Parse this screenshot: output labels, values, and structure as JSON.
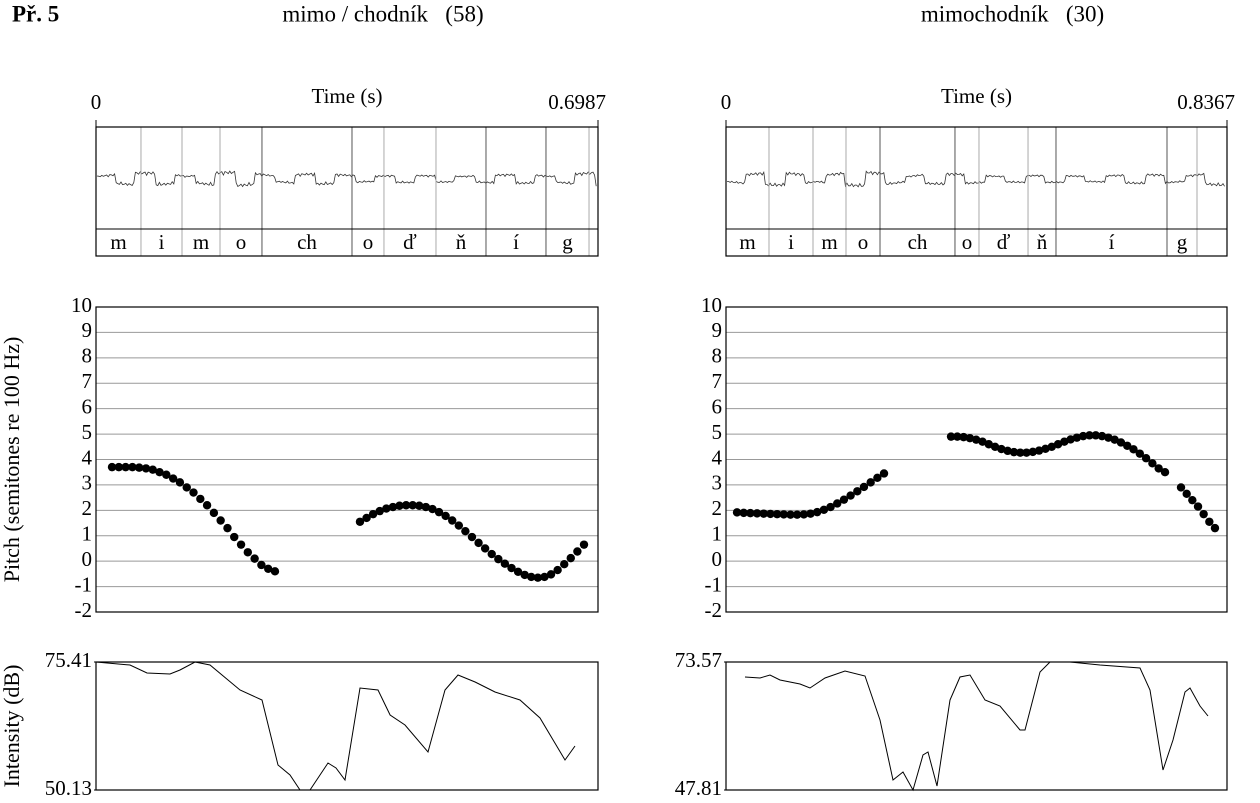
{
  "figure_label": "Př. 5",
  "chart_data": [
    {
      "type": "tier",
      "title": "mimo / chodník   (58)",
      "xlabel": "Time (s)",
      "xlim": [
        0,
        0.6987
      ],
      "xticks": [
        0,
        0.6987
      ],
      "labels": [
        "m",
        "i",
        "m",
        "o",
        "ch",
        "o",
        "ď",
        "ň",
        "í",
        "g"
      ],
      "boundaries": [
        0,
        0.0626,
        0.1197,
        0.1726,
        0.231,
        0.3563,
        0.4008,
        0.4732,
        0.5428,
        0.6263,
        0.6862
      ]
    },
    {
      "type": "scatter",
      "ylabel": "Pitch (semitones re 100 Hz)",
      "xlim": [
        0,
        0.6987
      ],
      "ylim": [
        -2,
        10
      ],
      "yticks": [
        -2,
        -1,
        0,
        1,
        2,
        3,
        4,
        5,
        6,
        7,
        8,
        9,
        10
      ],
      "grid": true,
      "color": "#000000",
      "x": [
        0.0223,
        0.0318,
        0.0412,
        0.0507,
        0.0601,
        0.0696,
        0.079,
        0.0885,
        0.0979,
        0.1074,
        0.1168,
        0.1263,
        0.1357,
        0.1452,
        0.1546,
        0.1641,
        0.1735,
        0.183,
        0.1924,
        0.2019,
        0.2113,
        0.2208,
        0.2302,
        0.2397,
        0.2491,
        0.3674,
        0.3766,
        0.3857,
        0.3949,
        0.4041,
        0.4133,
        0.4224,
        0.4316,
        0.4408,
        0.4499,
        0.4591,
        0.4683,
        0.4774,
        0.4866,
        0.4958,
        0.505,
        0.5141,
        0.5233,
        0.5325,
        0.5416,
        0.5508,
        0.56,
        0.5691,
        0.5783,
        0.5875,
        0.5967,
        0.6058,
        0.615,
        0.6242,
        0.6333,
        0.6425,
        0.6517,
        0.6608,
        0.67,
        0.6792
      ],
      "values": [
        3.7,
        3.7,
        3.7,
        3.7,
        3.68,
        3.65,
        3.6,
        3.5,
        3.4,
        3.25,
        3.1,
        2.9,
        2.7,
        2.45,
        2.2,
        1.9,
        1.6,
        1.3,
        0.95,
        0.65,
        0.35,
        0.1,
        -0.15,
        -0.3,
        -0.4,
        1.55,
        1.7,
        1.85,
        1.97,
        2.07,
        2.13,
        2.18,
        2.2,
        2.2,
        2.18,
        2.13,
        2.05,
        1.93,
        1.78,
        1.6,
        1.4,
        1.18,
        0.95,
        0.72,
        0.5,
        0.28,
        0.08,
        -0.1,
        -0.27,
        -0.42,
        -0.54,
        -0.62,
        -0.65,
        -0.62,
        -0.52,
        -0.35,
        -0.12,
        0.12,
        0.38,
        0.65
      ]
    },
    {
      "type": "line",
      "ylabel": "Intensity (dB)",
      "xlim": [
        0,
        0.6987
      ],
      "ylim": [
        50.13,
        75.41
      ],
      "yticks": [
        50.13,
        75.41
      ],
      "color": "#000000",
      "x": [
        0,
        0.0473,
        0.071,
        0.103,
        0.1169,
        0.1378,
        0.1587,
        0.2004,
        0.2311,
        0.2533,
        0.27,
        0.284,
        0.2979,
        0.3118,
        0.3229,
        0.3341,
        0.3466,
        0.3675,
        0.3925,
        0.4093,
        0.4301,
        0.4621,
        0.4858,
        0.5039,
        0.5276,
        0.5554,
        0.5902,
        0.618,
        0.6528,
        0.6667
      ],
      "values": [
        75.41,
        74.82,
        73.24,
        73.04,
        73.83,
        75.41,
        74.82,
        69.88,
        67.91,
        55.07,
        53.09,
        50.13,
        50.13,
        53.09,
        55.46,
        54.47,
        52.1,
        70.28,
        69.88,
        64.94,
        62.97,
        57.63,
        69.88,
        72.84,
        71.46,
        69.49,
        67.91,
        64.35,
        56.05,
        58.82
      ]
    },
    {
      "type": "tier",
      "title": "mimochodník   (30)",
      "xlabel": "Time (s)",
      "xlim": [
        0,
        0.8367
      ],
      "xticks": [
        0,
        0.8367
      ],
      "labels": [
        "m",
        "i",
        "m",
        "o",
        "ch",
        "o",
        "ď",
        "ň",
        "í",
        "g"
      ],
      "boundaries": [
        0,
        0.0718,
        0.1453,
        0.2004,
        0.2572,
        0.3824,
        0.4225,
        0.5044,
        0.5511,
        0.7365,
        0.7866
      ]
    },
    {
      "type": "scatter",
      "xlim": [
        0,
        0.8367
      ],
      "ylim": [
        -2,
        10
      ],
      "yticks": [
        -2,
        -1,
        0,
        1,
        2,
        3,
        4,
        5,
        6,
        7,
        8,
        9,
        10
      ],
      "grid": true,
      "color": "#000000",
      "x": [
        0.0184,
        0.0296,
        0.0407,
        0.0519,
        0.063,
        0.0742,
        0.0854,
        0.0965,
        0.1077,
        0.1188,
        0.13,
        0.1412,
        0.1523,
        0.1635,
        0.1746,
        0.1858,
        0.197,
        0.2081,
        0.2193,
        0.2304,
        0.2416,
        0.2528,
        0.2639,
        0.3758,
        0.3863,
        0.3968,
        0.4073,
        0.4178,
        0.4284,
        0.4389,
        0.4494,
        0.4599,
        0.4704,
        0.4809,
        0.4914,
        0.5019,
        0.5124,
        0.5229,
        0.5335,
        0.544,
        0.5545,
        0.565,
        0.5755,
        0.586,
        0.5965,
        0.607,
        0.6175,
        0.628,
        0.6386,
        0.6491,
        0.6596,
        0.6701,
        0.6806,
        0.6911,
        0.7016,
        0.7121,
        0.7226,
        0.7332,
        0.7599,
        0.7694,
        0.7788,
        0.7883,
        0.7977,
        0.8072,
        0.8166
      ],
      "values": [
        1.92,
        1.9,
        1.89,
        1.88,
        1.87,
        1.86,
        1.85,
        1.84,
        1.83,
        1.83,
        1.84,
        1.87,
        1.93,
        2.02,
        2.13,
        2.27,
        2.42,
        2.58,
        2.75,
        2.92,
        3.1,
        3.28,
        3.45,
        4.9,
        4.9,
        4.88,
        4.84,
        4.78,
        4.7,
        4.6,
        4.5,
        4.41,
        4.34,
        4.29,
        4.27,
        4.27,
        4.3,
        4.35,
        4.42,
        4.5,
        4.6,
        4.7,
        4.79,
        4.86,
        4.92,
        4.95,
        4.95,
        4.92,
        4.86,
        4.78,
        4.67,
        4.54,
        4.4,
        4.23,
        4.05,
        3.85,
        3.65,
        3.5,
        2.9,
        2.65,
        2.4,
        2.15,
        1.85,
        1.55,
        1.3
      ]
    },
    {
      "type": "line",
      "xlim": [
        0,
        0.8367
      ],
      "ylim": [
        47.81,
        73.57
      ],
      "yticks": [
        47.81,
        73.57
      ],
      "color": "#000000",
      "x": [
        0.0317,
        0.0568,
        0.0735,
        0.0902,
        0.1236,
        0.1403,
        0.1653,
        0.1987,
        0.2321,
        0.2572,
        0.2789,
        0.2956,
        0.3123,
        0.329,
        0.3373,
        0.3524,
        0.3741,
        0.3908,
        0.4075,
        0.4325,
        0.4576,
        0.491,
        0.4993,
        0.5244,
        0.5411,
        0.5745,
        0.6246,
        0.6914,
        0.7081,
        0.7298,
        0.7465,
        0.7665,
        0.7749,
        0.7916,
        0.8049
      ],
      "values": [
        70.55,
        70.35,
        70.95,
        69.95,
        69.14,
        68.34,
        70.35,
        71.76,
        70.75,
        61.9,
        49.82,
        51.43,
        47.81,
        54.85,
        55.45,
        48.61,
        65.92,
        70.55,
        70.95,
        65.92,
        64.71,
        59.88,
        59.88,
        71.56,
        73.57,
        73.57,
        72.97,
        72.36,
        67.93,
        51.83,
        57.87,
        67.53,
        68.34,
        64.71,
        62.7
      ]
    }
  ]
}
